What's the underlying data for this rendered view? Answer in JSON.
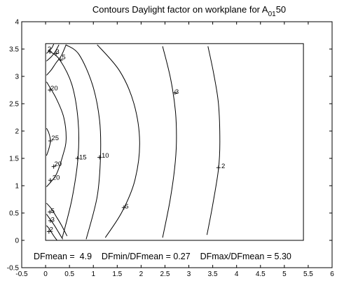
{
  "chart_data": {
    "type": "contour",
    "title": {
      "prefix": "Contours Daylight factor on workplane  for A",
      "subscript": "01",
      "suffix": "50"
    },
    "xlabel": "",
    "ylabel": "",
    "xlim": [
      -0.5,
      6
    ],
    "ylim": [
      -0.5,
      4
    ],
    "xticks": [
      "-0.5",
      "0",
      "0.5",
      "1",
      "1.5",
      "2",
      "2.5",
      "3",
      "3.5",
      "4",
      "4.5",
      "5",
      "5.5",
      "6"
    ],
    "yticks": [
      "-0.5",
      "0",
      "0.5",
      "1",
      "1.5",
      "2",
      "2.5",
      "3",
      "3.5",
      "4"
    ],
    "grid": false,
    "room_outline": [
      [
        0,
        0
      ],
      [
        5.4,
        0
      ],
      [
        5.4,
        3.6
      ],
      [
        0,
        3.6
      ]
    ],
    "contours": [
      {
        "level": 2,
        "points": [
          [
            3.38,
            0.1
          ],
          [
            3.5,
            0.65
          ],
          [
            3.62,
            1.3
          ],
          [
            3.65,
            1.8
          ],
          [
            3.62,
            2.5
          ],
          [
            3.52,
            3.05
          ],
          [
            3.4,
            3.55
          ]
        ]
      },
      {
        "level": 3,
        "points": [
          [
            2.45,
            0.05
          ],
          [
            2.6,
            0.7
          ],
          [
            2.7,
            1.3
          ],
          [
            2.74,
            1.8
          ],
          [
            2.72,
            2.35
          ],
          [
            2.62,
            2.95
          ],
          [
            2.45,
            3.55
          ]
        ]
      },
      {
        "level": 5,
        "points": [
          [
            1.25,
            0.05
          ],
          [
            1.6,
            0.52
          ],
          [
            1.87,
            1.1
          ],
          [
            1.97,
            1.8
          ],
          [
            1.85,
            2.5
          ],
          [
            1.55,
            3.1
          ],
          [
            1.08,
            3.58
          ]
        ]
      },
      {
        "level": 10,
        "points": [
          [
            0.85,
            0.02
          ],
          [
            1.08,
            0.8
          ],
          [
            1.15,
            1.55
          ],
          [
            1.13,
            2.2
          ],
          [
            0.98,
            2.85
          ],
          [
            0.7,
            3.4
          ],
          [
            0.42,
            3.58
          ]
        ]
      },
      {
        "level": 15,
        "points": [
          [
            0.35,
            0.05
          ],
          [
            0.55,
            0.75
          ],
          [
            0.68,
            1.52
          ],
          [
            0.68,
            2.2
          ],
          [
            0.55,
            2.85
          ],
          [
            0.3,
            3.3
          ],
          [
            0.1,
            3.45
          ]
        ]
      },
      {
        "level": 20,
        "points": [
          [
            0.02,
            0.98
          ],
          [
            0.22,
            1.2
          ],
          [
            0.36,
            1.55
          ],
          [
            0.43,
            1.85
          ],
          [
            0.38,
            2.25
          ],
          [
            0.22,
            2.6
          ],
          [
            0.02,
            2.9
          ]
        ]
      },
      {
        "level": 25,
        "points": [
          [
            0.02,
            1.55
          ],
          [
            0.07,
            1.68
          ],
          [
            0.1,
            1.82
          ],
          [
            0.07,
            1.96
          ],
          [
            0.02,
            2.05
          ]
        ]
      },
      {
        "level": 5,
        "points": [
          [
            0.02,
            0.68
          ],
          [
            0.12,
            0.58
          ],
          [
            0.22,
            0.44
          ],
          [
            0.33,
            0.28
          ],
          [
            0.45,
            0.08
          ]
        ]
      },
      {
        "level": 3,
        "points": [
          [
            0.02,
            0.48
          ],
          [
            0.1,
            0.38
          ],
          [
            0.18,
            0.28
          ],
          [
            0.27,
            0.15
          ],
          [
            0.36,
            0.02
          ]
        ]
      },
      {
        "level": 2,
        "points": [
          [
            0.02,
            0.27
          ],
          [
            0.07,
            0.22
          ],
          [
            0.12,
            0.15
          ],
          [
            0.18,
            0.07
          ],
          [
            0.24,
            0.0
          ]
        ]
      },
      {
        "level": 5,
        "points": [
          [
            0.02,
            3.02
          ],
          [
            0.12,
            3.12
          ],
          [
            0.22,
            3.25
          ],
          [
            0.33,
            3.38
          ],
          [
            0.43,
            3.58
          ]
        ]
      },
      {
        "level": 3,
        "points": [
          [
            0.02,
            3.28
          ],
          [
            0.12,
            3.36
          ],
          [
            0.2,
            3.45
          ],
          [
            0.28,
            3.58
          ]
        ]
      },
      {
        "level": 2,
        "points": [
          [
            0.02,
            3.42
          ],
          [
            0.08,
            3.47
          ],
          [
            0.13,
            3.52
          ],
          [
            0.17,
            3.59
          ]
        ]
      }
    ],
    "labels": [
      {
        "text": "2",
        "x": 0.08,
        "y": 3.5,
        "mark": [
          0.09,
          3.45
        ]
      },
      {
        "text": "3",
        "x": 0.25,
        "y": 3.45,
        "mark": [
          0.22,
          3.42
        ]
      },
      {
        "text": "5",
        "x": 0.38,
        "y": 3.35,
        "mark": [
          0.32,
          3.3
        ]
      },
      {
        "text": "20",
        "x": 0.18,
        "y": 2.78,
        "mark": [
          0.09,
          2.75
        ]
      },
      {
        "text": "3",
        "x": 2.75,
        "y": 2.72,
        "mark": [
          2.71,
          2.7
        ]
      },
      {
        "text": "25",
        "x": 0.2,
        "y": 1.87,
        "mark": [
          0.1,
          1.82
        ]
      },
      {
        "text": "15",
        "x": 0.78,
        "y": 1.52,
        "mark": [
          0.67,
          1.5
        ]
      },
      {
        "text": "10",
        "x": 1.25,
        "y": 1.55,
        "mark": [
          1.13,
          1.52
        ]
      },
      {
        "text": "20",
        "x": 0.26,
        "y": 1.4,
        "mark": [
          0.17,
          1.35
        ]
      },
      {
        "text": "2",
        "x": 3.72,
        "y": 1.36,
        "mark": [
          3.62,
          1.33
        ]
      },
      {
        "text": "20",
        "x": 0.22,
        "y": 1.15,
        "mark": [
          0.1,
          1.1
        ]
      },
      {
        "text": "5",
        "x": 1.7,
        "y": 0.62,
        "mark": [
          1.64,
          0.6
        ]
      },
      {
        "text": "5",
        "x": 0.15,
        "y": 0.54,
        "mark": [
          0.09,
          0.52
        ]
      },
      {
        "text": "3",
        "x": 0.15,
        "y": 0.38,
        "mark": [
          0.1,
          0.36
        ]
      },
      {
        "text": "2",
        "x": 0.12,
        "y": 0.2,
        "mark": [
          0.07,
          0.16
        ]
      }
    ],
    "stats_line": "DFmean =  4.9    DFmin/DFmean = 0.27    DFmax/DFmean = 5.30",
    "colors": {
      "line": "#000000",
      "background": "#ffffff"
    }
  }
}
